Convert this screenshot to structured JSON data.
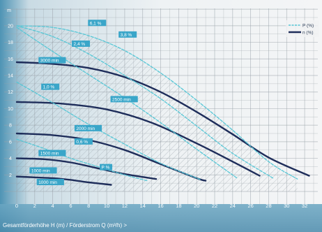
{
  "chart_data": {
    "type": "line",
    "xlabel": "Gesamtförderhöhe H (m) / Förderstrom Q (m³/h) >",
    "ylabel_marker": "m",
    "xlim": [
      0,
      33
    ],
    "ylim": [
      0,
      21
    ],
    "x_ticks": [
      0,
      2,
      4,
      6,
      8,
      10,
      12,
      14,
      16,
      18,
      20,
      22,
      24,
      26,
      28,
      30,
      32
    ],
    "y_ticks": [
      2,
      4,
      6,
      8,
      10,
      12,
      14,
      16,
      18,
      20
    ],
    "grid": true,
    "legend_position": "top-right",
    "legend": [
      {
        "label": "P (%)",
        "style": "dashed",
        "color": "#56c7d6"
      },
      {
        "label": "n (%)",
        "style": "solid",
        "color": "#1e2d5a"
      }
    ],
    "series": [
      {
        "kind": "speed",
        "label": "3000 min",
        "x": [
          0,
          4,
          8,
          12,
          16,
          20,
          24,
          28,
          32.5
        ],
        "y": [
          15.6,
          15.4,
          14.9,
          13.8,
          12.0,
          9.6,
          6.9,
          4.1,
          1.9
        ]
      },
      {
        "kind": "speed",
        "label": "2500 min",
        "x": [
          0,
          5,
          10,
          15,
          20,
          24,
          27
        ],
        "y": [
          10.8,
          10.6,
          9.9,
          8.3,
          5.8,
          3.6,
          1.9
        ]
      },
      {
        "kind": "speed",
        "label": "2000 min",
        "x": [
          0,
          4,
          8,
          12,
          16,
          20,
          21
        ],
        "y": [
          7.0,
          6.8,
          6.2,
          5.0,
          3.3,
          1.6,
          1.3
        ]
      },
      {
        "kind": "speed",
        "label": "1500 min",
        "x": [
          0,
          3,
          6,
          9,
          12,
          15.5
        ],
        "y": [
          4.0,
          3.9,
          3.5,
          2.8,
          2.1,
          1.5
        ]
      },
      {
        "kind": "speed",
        "label": "1000 min",
        "x": [
          0,
          2,
          4,
          6,
          8,
          10.5
        ],
        "y": [
          1.8,
          1.7,
          1.6,
          1.4,
          1.1,
          0.8
        ]
      },
      {
        "kind": "power",
        "label": "6,1 %",
        "x": [
          0,
          4,
          8,
          12,
          16,
          20,
          24,
          28,
          31.2
        ],
        "y": [
          20.0,
          19.8,
          18.8,
          17.0,
          14.3,
          11.0,
          7.4,
          3.6,
          1.5
        ]
      },
      {
        "kind": "power",
        "label": "3,8 %",
        "x": [
          0,
          4,
          8,
          12,
          16,
          20,
          24,
          28.5
        ],
        "y": [
          20.0,
          18.7,
          16.6,
          14.0,
          11.2,
          7.9,
          4.6,
          1.6
        ]
      },
      {
        "kind": "power",
        "label": "2,4 %",
        "x": [
          0,
          4,
          8,
          12,
          16,
          20,
          24.5
        ],
        "y": [
          19.8,
          16.9,
          14.1,
          11.3,
          8.3,
          5.1,
          1.6
        ]
      },
      {
        "kind": "power",
        "label": "1,0 %",
        "x": [
          0,
          4,
          8,
          12,
          16,
          20.5
        ],
        "y": [
          13.2,
          10.7,
          8.1,
          5.7,
          3.4,
          1.4
        ]
      },
      {
        "kind": "power",
        "label": "0,6 %",
        "x": [
          0,
          3,
          6,
          9,
          12,
          14.5
        ],
        "y": [
          6.3,
          5.2,
          4.0,
          3.0,
          2.0,
          1.3
        ]
      }
    ],
    "series_labels": [
      {
        "text": "6,1 %",
        "x": 8,
        "y": 20.3
      },
      {
        "text": "3,8 %",
        "x": 11.4,
        "y": 18.9
      },
      {
        "text": "2,4 %",
        "x": 6.2,
        "y": 17.8
      },
      {
        "text": "3000 min",
        "x": 2.5,
        "y": 15.8
      },
      {
        "text": "1,0 %",
        "x": 2.8,
        "y": 12.6
      },
      {
        "text": "2500 min",
        "x": 10.5,
        "y": 11.1
      },
      {
        "text": "2000 min",
        "x": 6.5,
        "y": 7.6
      },
      {
        "text": "0,6 %",
        "x": 6.5,
        "y": 6.0
      },
      {
        "text": "1500 min",
        "x": 2.5,
        "y": 4.6
      },
      {
        "text": "P %",
        "x": 9.3,
        "y": 2.9
      },
      {
        "text": "1000 min",
        "x": 1.5,
        "y": 2.5
      },
      {
        "text": "1000 min",
        "x": 2.3,
        "y": 1.1
      }
    ]
  }
}
